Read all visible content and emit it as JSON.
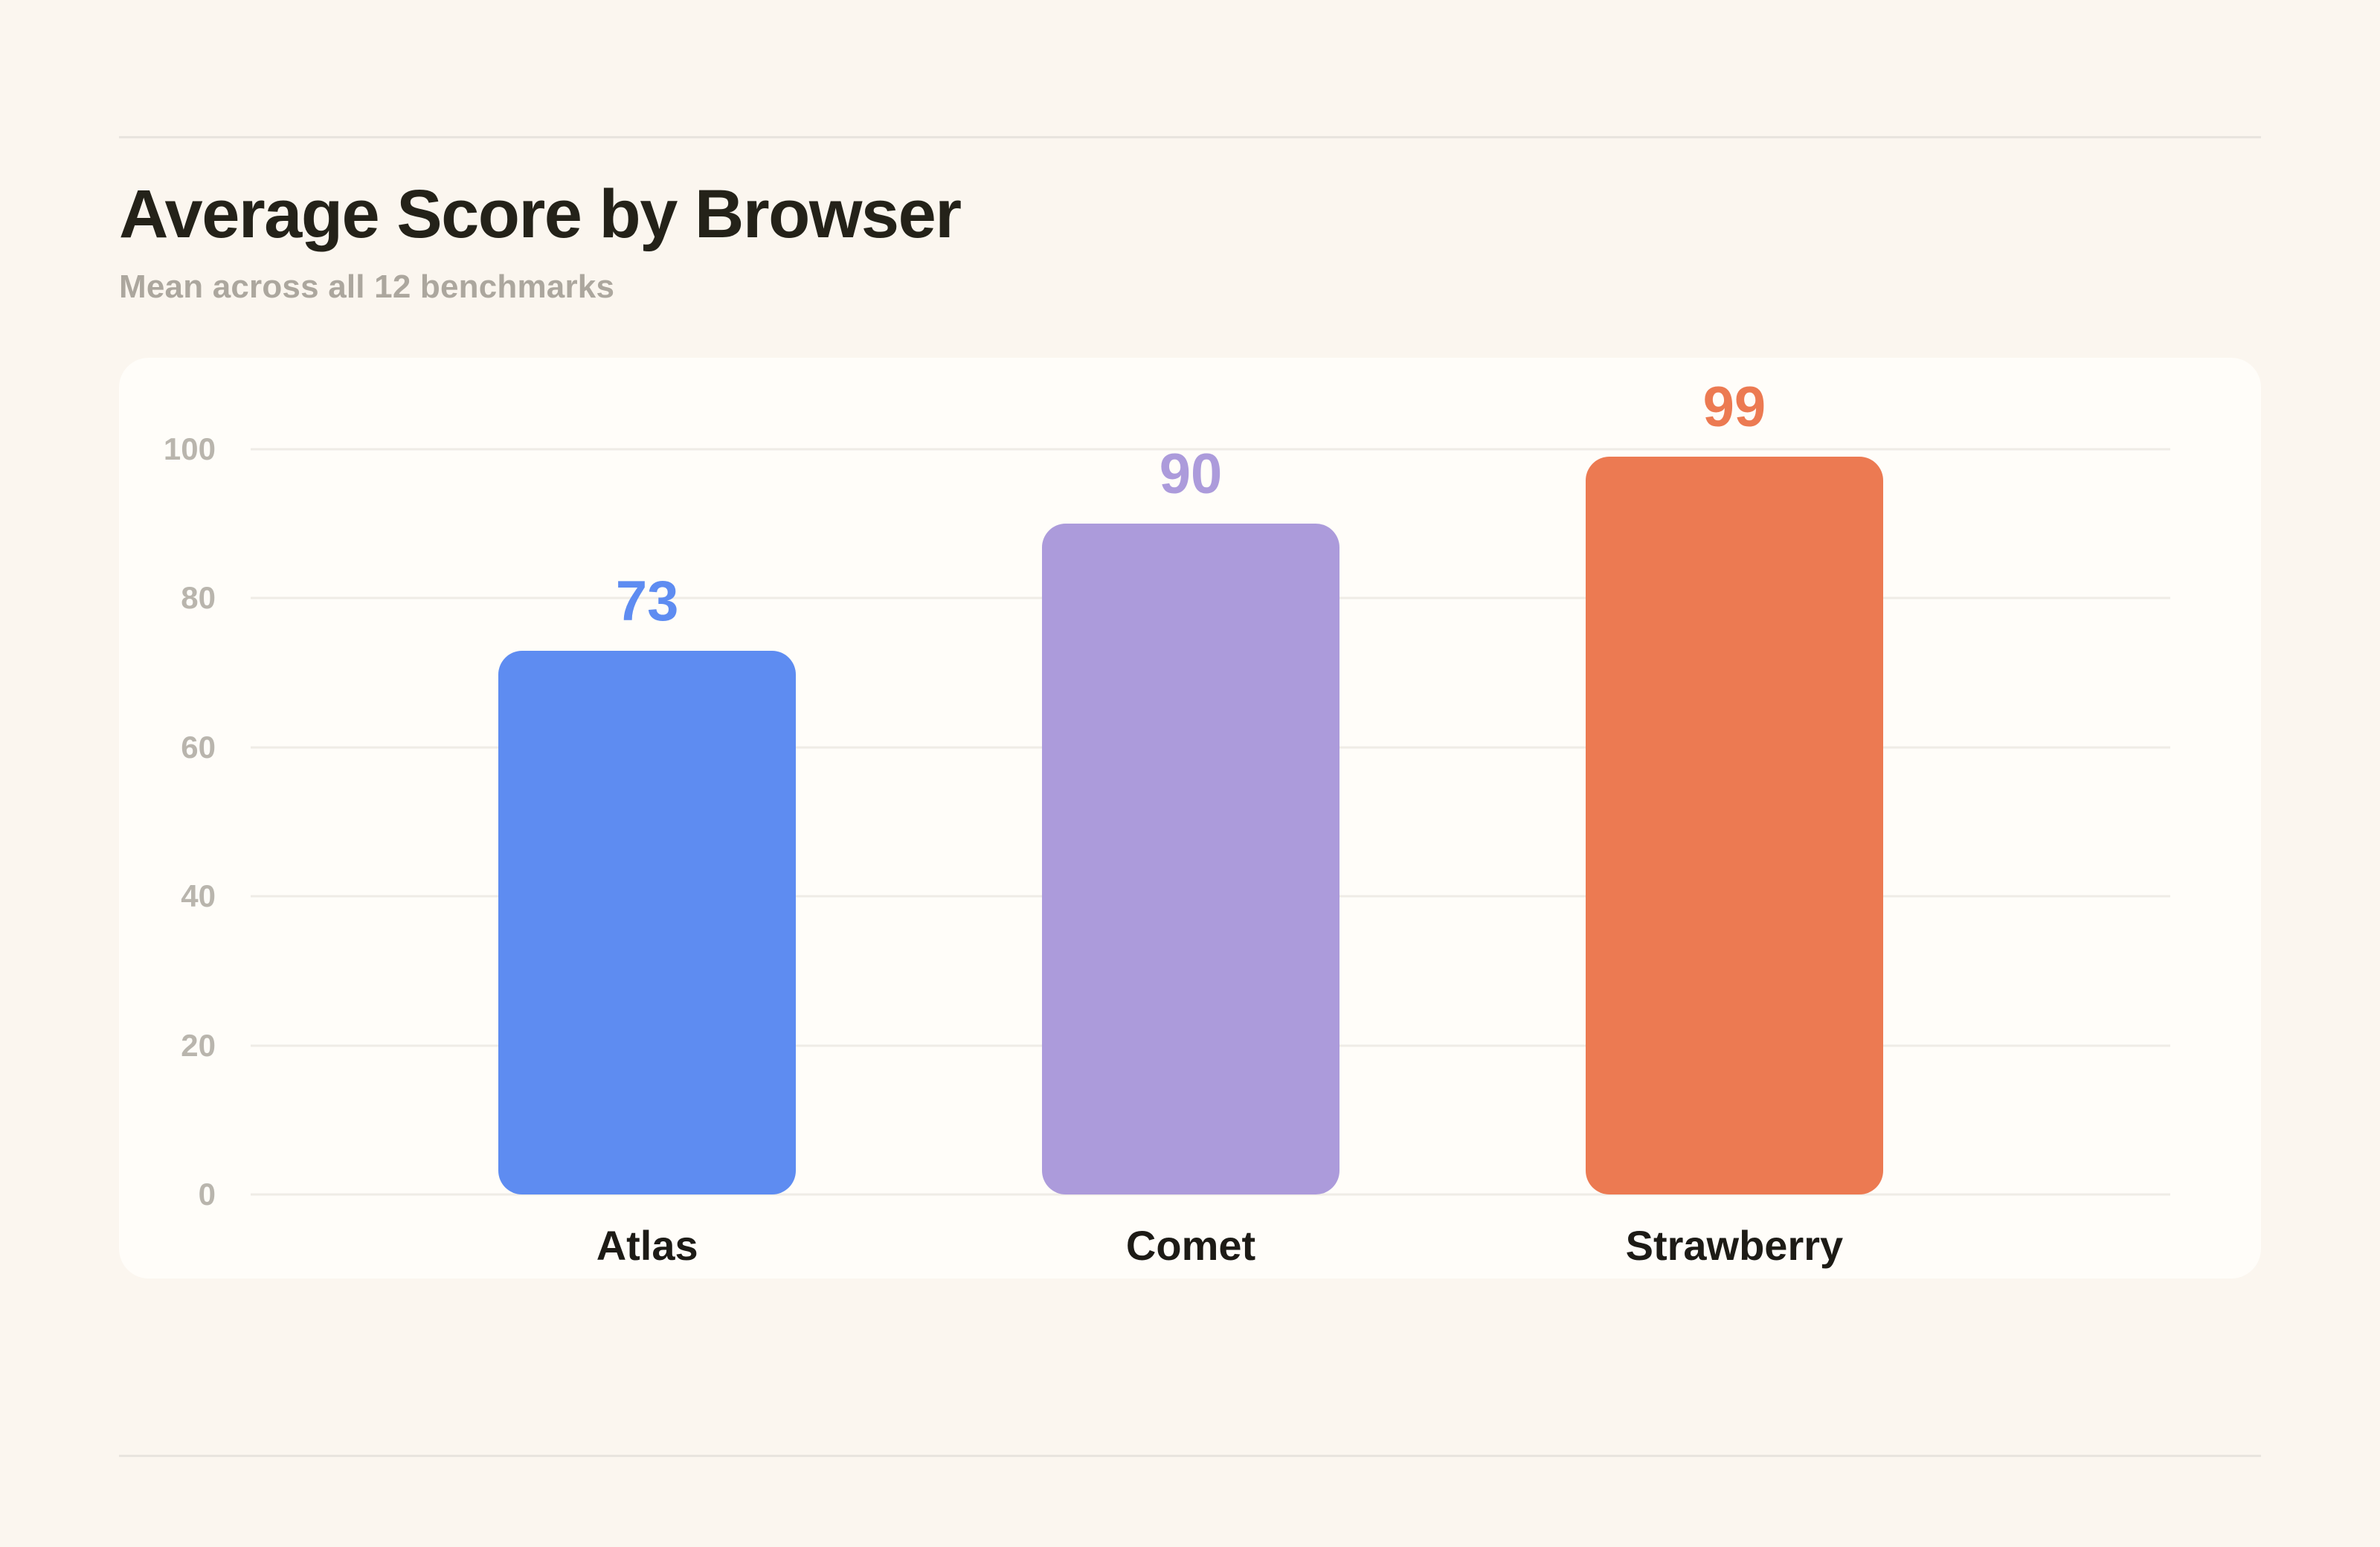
{
  "chart_data": {
    "type": "bar",
    "title": "Average Score by Browser",
    "subtitle": "Mean across all 12 benchmarks",
    "categories": [
      "Atlas",
      "Comet",
      "Strawberry"
    ],
    "values": [
      73,
      90,
      99
    ],
    "bar_colors": [
      "#5E8CF1",
      "#AC9BDB",
      "#EC7A52"
    ],
    "xlabel": "",
    "ylabel": "",
    "ylim": [
      0,
      100
    ],
    "yticks": [
      0,
      20,
      40,
      60,
      80,
      100
    ],
    "grid": "horizontal gridlines at each y tick",
    "legend": "none",
    "value_labels": "above each bar, colored to match the bar"
  },
  "colors": {
    "page_bg": "#FBF6EF",
    "panel_bg": "#FFFDF9",
    "gridline": "#EFECE6",
    "divider": "#E8E4DE",
    "title_text": "#242219",
    "subtitle_text": "#ACA79E",
    "tick_text": "#B9B5AD",
    "category_text": "#1D1B16"
  }
}
